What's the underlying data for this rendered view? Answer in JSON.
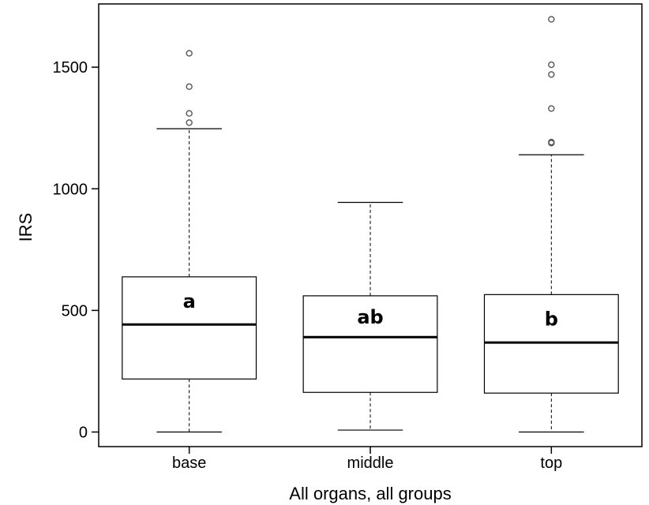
{
  "chart_data": {
    "type": "boxplot",
    "xlabel": "All organs, all groups",
    "ylabel": "IRS",
    "ylim": [
      -60,
      1760
    ],
    "yticks": [
      0,
      500,
      1000,
      1500
    ],
    "ytick_labels": [
      "0",
      "500",
      "1000",
      "1500"
    ],
    "grid": false,
    "legend": "none",
    "categories": [
      "base",
      "middle",
      "top"
    ],
    "boxes": [
      {
        "category": "base",
        "whisker_low": 0,
        "q1": 218,
        "median": 442,
        "q3": 638,
        "whisker_high": 1247,
        "outliers": [
          1272,
          1310,
          1420,
          1557
        ],
        "letter": "a"
      },
      {
        "category": "middle",
        "whisker_low": 8,
        "q1": 163,
        "median": 390,
        "q3": 560,
        "whisker_high": 944,
        "outliers": [],
        "letter": "ab"
      },
      {
        "category": "top",
        "whisker_low": 0,
        "q1": 160,
        "median": 368,
        "q3": 565,
        "whisker_high": 1140,
        "outliers": [
          1188,
          1192,
          1330,
          1470,
          1510,
          1697
        ],
        "letter": "b"
      }
    ]
  }
}
